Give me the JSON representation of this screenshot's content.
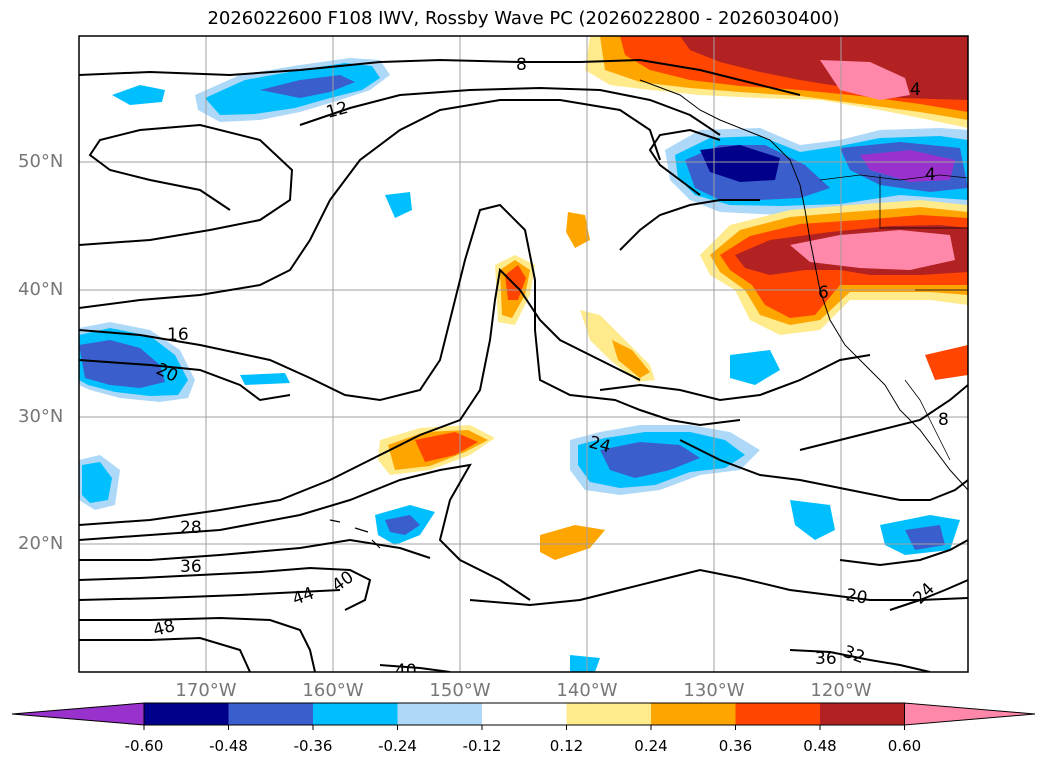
{
  "title": "2026022600 F108 IWV, Rossby Wave PC (2026022800 - 2026030400)",
  "lat_labels": [
    "50°N",
    "40°N",
    "30°N",
    "20°N"
  ],
  "lon_labels": [
    "170°W",
    "160°W",
    "150°W",
    "140°W",
    "130°W",
    "120°W"
  ],
  "colorbar": {
    "colors": [
      "#9932cc",
      "#00008b",
      "#3a5fcd",
      "#00bfff",
      "#add8f8",
      "#ffffff",
      "#ffea8c",
      "#ffa500",
      "#ff4500",
      "#b22222",
      "#ff88aa"
    ],
    "labels": [
      "-0.60",
      "-0.48",
      "-0.36",
      "-0.24",
      "-0.12",
      "0.12",
      "0.24",
      "0.36",
      "0.48",
      "0.60"
    ]
  },
  "contour_labels": [
    "8",
    "4",
    "4",
    "12",
    "16",
    "20",
    "24",
    "28",
    "36",
    "44",
    "40",
    "48",
    "40",
    "20",
    "24",
    "32",
    "36",
    "6",
    "8"
  ]
}
